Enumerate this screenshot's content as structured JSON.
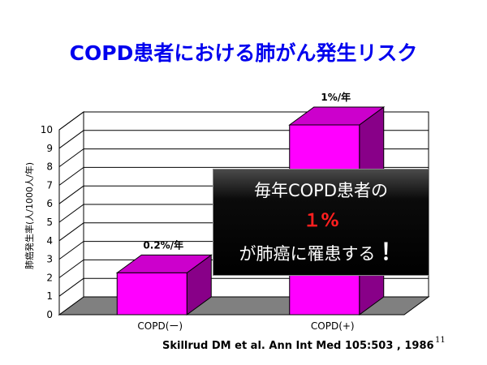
{
  "slide": {
    "title": "COPD患者における肺がん発生リスク",
    "citation": "Skillrud DM et al. Ann Int Med 105:503 , 1986",
    "page_number": "11"
  },
  "callout": {
    "line1": "毎年COPD患者の",
    "line2": "１%",
    "line3": "が肺癌に罹患する",
    "line3_emphasis": "！"
  },
  "colors": {
    "title": "#0000ee",
    "bar_front": "#ff00ff",
    "bar_top": "#cc00cc",
    "bar_side": "#880088",
    "floor": "#808080",
    "callout_highlight": "#ff1f1f"
  },
  "chart_data": {
    "type": "bar",
    "categories": [
      "COPD(ー)",
      "COPD(+)"
    ],
    "values": [
      2,
      10
    ],
    "data_labels": [
      "0.2%/年",
      "1%/年"
    ],
    "ylabel": "肺癌発生率(人/1000人/年)",
    "ylim": [
      0,
      10
    ],
    "yticks": [
      "0",
      "1",
      "2",
      "3",
      "4",
      "5",
      "6",
      "7",
      "8",
      "9",
      "10"
    ],
    "grid": true,
    "three_d": true
  }
}
